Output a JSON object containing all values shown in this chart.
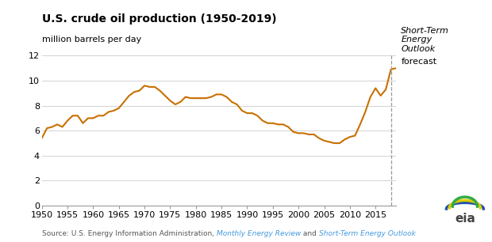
{
  "title": "U.S. crude oil production (1950-2019)",
  "ylabel": "million barrels per day",
  "line_color": "#C87000",
  "forecast_line_x": 2018,
  "ylim": [
    0,
    12
  ],
  "xlim": [
    1950,
    2019
  ],
  "yticks": [
    0,
    2,
    4,
    6,
    8,
    10,
    12
  ],
  "xticks": [
    1950,
    1955,
    1960,
    1965,
    1970,
    1975,
    1980,
    1985,
    1990,
    1995,
    2000,
    2005,
    2010,
    2015
  ],
  "data_years": [
    1950,
    1951,
    1952,
    1953,
    1954,
    1955,
    1956,
    1957,
    1958,
    1959,
    1960,
    1961,
    1962,
    1963,
    1964,
    1965,
    1966,
    1967,
    1968,
    1969,
    1970,
    1971,
    1972,
    1973,
    1974,
    1975,
    1976,
    1977,
    1978,
    1979,
    1980,
    1981,
    1982,
    1983,
    1984,
    1985,
    1986,
    1987,
    1988,
    1989,
    1990,
    1991,
    1992,
    1993,
    1994,
    1995,
    1996,
    1997,
    1998,
    1999,
    2000,
    2001,
    2002,
    2003,
    2004,
    2005,
    2006,
    2007,
    2008,
    2009,
    2010,
    2011,
    2012,
    2013,
    2014,
    2015,
    2016,
    2017,
    2018,
    2019
  ],
  "data_values": [
    5.4,
    6.2,
    6.3,
    6.5,
    6.3,
    6.8,
    7.2,
    7.2,
    6.6,
    7.0,
    7.0,
    7.2,
    7.2,
    7.5,
    7.6,
    7.8,
    8.3,
    8.8,
    9.1,
    9.2,
    9.6,
    9.5,
    9.5,
    9.2,
    8.8,
    8.4,
    8.1,
    8.3,
    8.7,
    8.6,
    8.6,
    8.6,
    8.6,
    8.7,
    8.9,
    8.9,
    8.7,
    8.3,
    8.1,
    7.6,
    7.4,
    7.4,
    7.2,
    6.8,
    6.6,
    6.6,
    6.5,
    6.5,
    6.3,
    5.9,
    5.8,
    5.8,
    5.7,
    5.7,
    5.4,
    5.2,
    5.1,
    5.0,
    5.0,
    5.3,
    5.5,
    5.6,
    6.5,
    7.5,
    8.7,
    9.4,
    8.8,
    9.3,
    10.9,
    11.0
  ],
  "background_color": "#ffffff",
  "grid_color": "#cccccc",
  "title_fontsize": 10,
  "ylabel_fontsize": 8,
  "tick_fontsize": 8,
  "source_color": "#555555",
  "link_color": "#4499dd",
  "forecast_italic_3": "Short-Term\nEnergy\nOutlook",
  "forecast_normal": "forecast"
}
